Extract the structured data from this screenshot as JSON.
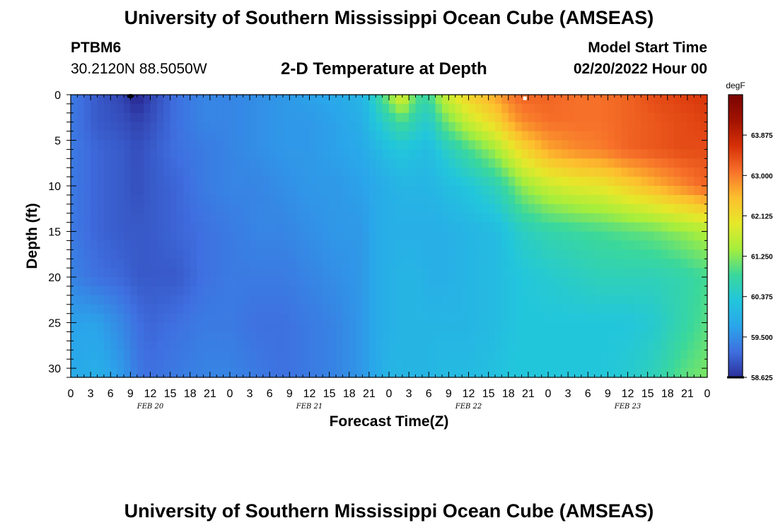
{
  "header": {
    "title": "University of Southern Mississippi Ocean Cube (AMSEAS)",
    "station": "PTBM6",
    "coords": "30.2120N  88.5050W",
    "subtitle": "2-D Temperature at Depth",
    "start_label": "Model Start Time",
    "start_value": "02/20/2022 Hour 00"
  },
  "footer": {
    "title": "University of Southern Mississippi Ocean Cube (AMSEAS)"
  },
  "chart_data": {
    "type": "heatmap",
    "title": "2-D Temperature at Depth",
    "xlabel": "Forecast Time(Z)",
    "ylabel": "Depth (ft)",
    "xlim_hours": [
      0,
      96
    ],
    "ylim": [
      0,
      31
    ],
    "y_inverted": true,
    "x_tick_labels": [
      "0",
      "3",
      "6",
      "9",
      "12",
      "15",
      "18",
      "21",
      "0",
      "3",
      "6",
      "9",
      "12",
      "15",
      "18",
      "21",
      "0",
      "3",
      "6",
      "9",
      "12",
      "15",
      "18",
      "21",
      "0",
      "3",
      "6",
      "9",
      "12",
      "15",
      "18",
      "21",
      "0"
    ],
    "date_labels": [
      {
        "text": "FEB 20",
        "hour": 12
      },
      {
        "text": "FEB 21",
        "hour": 36
      },
      {
        "text": "FEB 22",
        "hour": 60
      },
      {
        "text": "FEB 23",
        "hour": 84
      }
    ],
    "y_tick_labels": [
      "0",
      "5",
      "10",
      "15",
      "20",
      "25",
      "30"
    ],
    "y_ticks": [
      0,
      5,
      10,
      15,
      20,
      25,
      30
    ],
    "colorbar": {
      "unit": "degF",
      "min": 58.625,
      "max": 64.75,
      "tick_labels": [
        "58.625",
        "59.500",
        "60.375",
        "61.250",
        "62.125",
        "63.000",
        "63.875"
      ],
      "ticks": [
        58.625,
        59.5,
        60.375,
        61.25,
        62.125,
        63.0,
        63.875
      ],
      "colors": [
        "#2b2f9a",
        "#3f6fe0",
        "#2aa6ea",
        "#22c6dc",
        "#3bd89b",
        "#a6ee3c",
        "#e6e82a",
        "#fdbf2e",
        "#f7722a",
        "#d73008",
        "#a11201",
        "#7a0403"
      ]
    },
    "temperature_grid": {
      "hours": [
        0,
        4,
        8,
        10,
        12,
        16,
        20,
        24,
        28,
        32,
        36,
        40,
        44,
        46,
        48,
        50,
        52,
        54,
        56,
        60,
        64,
        66,
        68,
        72,
        76,
        80,
        84,
        88,
        92,
        96
      ],
      "depths": [
        0,
        3,
        6,
        10,
        15,
        20,
        25,
        31
      ],
      "values": [
        [
          59.3,
          59.0,
          58.8,
          58.5,
          58.8,
          59.2,
          59.4,
          59.4,
          59.5,
          59.6,
          59.7,
          59.8,
          60.0,
          60.6,
          61.3,
          62.0,
          61.0,
          60.8,
          61.6,
          62.3,
          62.7,
          63.0,
          63.2,
          63.2,
          63.1,
          63.1,
          63.2,
          63.4,
          63.5,
          63.6
        ],
        [
          59.3,
          59.0,
          58.9,
          58.8,
          58.9,
          59.2,
          59.4,
          59.4,
          59.5,
          59.6,
          59.6,
          59.7,
          59.9,
          60.3,
          60.6,
          60.9,
          60.6,
          60.4,
          61.0,
          61.7,
          62.2,
          62.6,
          62.9,
          63.1,
          63.1,
          63.1,
          63.2,
          63.3,
          63.4,
          63.5
        ],
        [
          59.3,
          59.1,
          59.0,
          58.9,
          59.0,
          59.2,
          59.3,
          59.4,
          59.5,
          59.6,
          59.6,
          59.7,
          59.8,
          60.0,
          60.2,
          60.3,
          60.2,
          60.1,
          60.4,
          60.9,
          61.4,
          61.8,
          62.2,
          62.7,
          62.9,
          63.0,
          63.2,
          63.3,
          63.4,
          63.4
        ],
        [
          59.3,
          59.1,
          59.0,
          58.9,
          59.0,
          59.1,
          59.3,
          59.4,
          59.4,
          59.5,
          59.6,
          59.6,
          59.7,
          59.8,
          59.9,
          60.0,
          60.0,
          60.0,
          60.1,
          60.3,
          60.6,
          60.9,
          61.3,
          61.7,
          61.9,
          62.0,
          62.3,
          62.6,
          62.9,
          63.2
        ],
        [
          59.3,
          59.1,
          59.0,
          59.0,
          59.0,
          59.1,
          59.2,
          59.3,
          59.4,
          59.4,
          59.5,
          59.6,
          59.6,
          59.8,
          59.9,
          59.9,
          59.9,
          59.9,
          59.9,
          60.0,
          60.1,
          60.3,
          60.5,
          60.7,
          60.8,
          60.9,
          61.0,
          61.1,
          61.3,
          61.5
        ],
        [
          59.4,
          59.2,
          59.1,
          59.0,
          59.0,
          59.0,
          59.2,
          59.3,
          59.3,
          59.3,
          59.4,
          59.5,
          59.6,
          59.8,
          59.9,
          60.0,
          60.0,
          59.9,
          59.9,
          60.0,
          60.1,
          60.2,
          60.3,
          60.4,
          60.5,
          60.6,
          60.6,
          60.6,
          60.7,
          60.9
        ],
        [
          59.7,
          59.7,
          59.4,
          59.2,
          59.1,
          59.2,
          59.3,
          59.3,
          59.2,
          59.2,
          59.3,
          59.4,
          59.6,
          59.8,
          59.9,
          60.0,
          60.0,
          60.0,
          60.0,
          60.0,
          60.1,
          60.2,
          60.3,
          60.3,
          60.3,
          60.3,
          60.3,
          60.4,
          60.7,
          61.0
        ],
        [
          59.8,
          59.9,
          59.6,
          59.3,
          59.2,
          59.3,
          59.4,
          59.4,
          59.3,
          59.2,
          59.3,
          59.4,
          59.6,
          59.8,
          60.0,
          60.0,
          60.0,
          60.0,
          60.1,
          60.1,
          60.2,
          60.3,
          60.3,
          60.3,
          60.3,
          60.3,
          60.4,
          60.6,
          61.0,
          61.2
        ]
      ]
    },
    "markers": [
      {
        "hour": 9,
        "depth": 0,
        "shape": "dot",
        "color": "#000000"
      },
      {
        "hour": 68.5,
        "depth": 0.2,
        "shape": "square",
        "color": "#ffffff"
      }
    ]
  }
}
